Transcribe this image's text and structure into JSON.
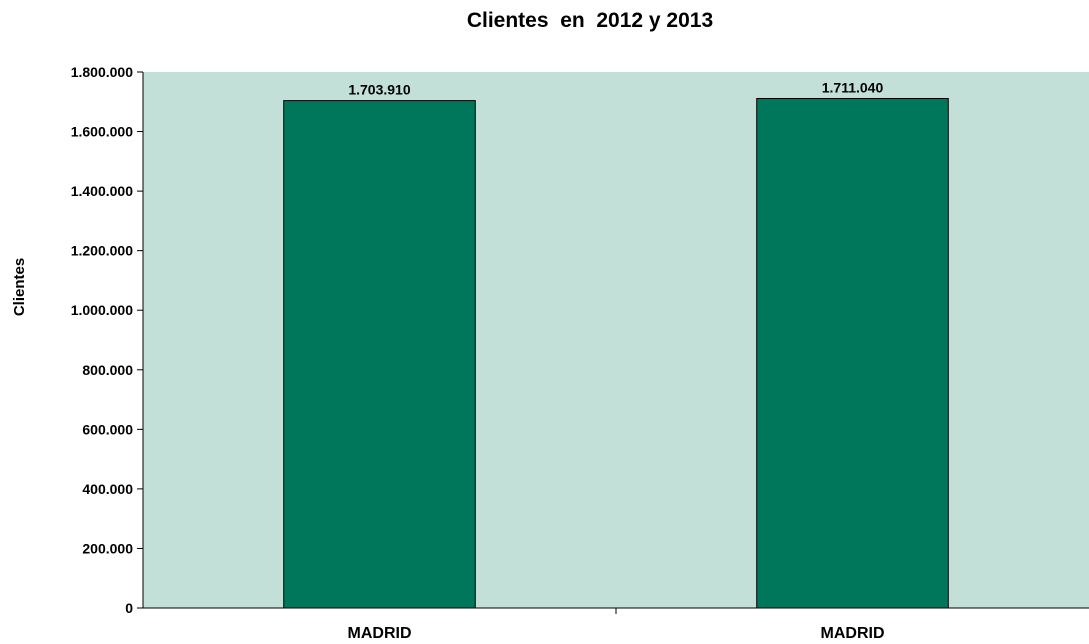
{
  "chart_data": {
    "type": "bar",
    "title": "Clientes  en  2012 y 2013",
    "ylabel": "Clientes",
    "xlabel": "",
    "categories": [
      "MADRID",
      "MADRID"
    ],
    "values": [
      1703910,
      1711040
    ],
    "data_labels": [
      "1.703.910",
      "1.711.040"
    ],
    "ylim": [
      0,
      1800000
    ],
    "yticks": [
      0,
      200000,
      400000,
      600000,
      800000,
      1000000,
      1200000,
      1400000,
      1600000,
      1800000
    ],
    "ytick_labels": [
      "0",
      "200.000",
      "400.000",
      "600.000",
      "800.000",
      "1.000.000",
      "1.200.000",
      "1.400.000",
      "1.600.000",
      "1.800.000"
    ],
    "grid": false,
    "legend": "none",
    "colors": {
      "plot_background": "#c2dfd8",
      "bar_fill": "#00775a",
      "bar_stroke": "#000000",
      "axis": "#000000"
    }
  }
}
